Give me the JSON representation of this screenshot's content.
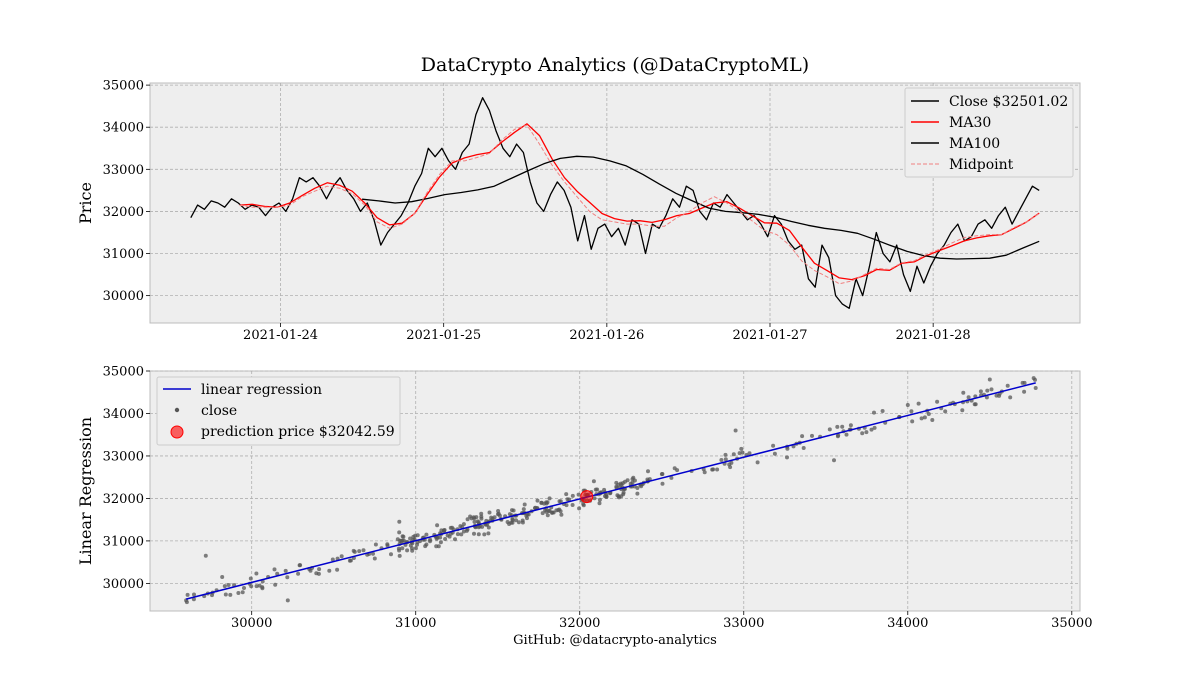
{
  "figure": {
    "title": "DataCrypto Analytics (@DataCryptoML)",
    "footer": "GitHub: @datacrypto-analytics"
  },
  "chart_data": [
    {
      "type": "line",
      "title": "DataCrypto Analytics (@DataCryptoML)",
      "xlabel": "",
      "ylabel": "Price",
      "x_ticks": [
        "2021-01-24",
        "2021-01-25",
        "2021-01-26",
        "2021-01-27",
        "2021-01-28"
      ],
      "x_range_days": [
        -0.8,
        4.9
      ],
      "x_tick_days": [
        0,
        1,
        2,
        3,
        4
      ],
      "ylim": [
        29350,
        35050
      ],
      "y_ticks": [
        30000,
        31000,
        32000,
        33000,
        34000,
        35000
      ],
      "grid": true,
      "legend_position": "top-right",
      "legend": [
        "Close $32501.02",
        "MA30",
        "MA100",
        "Midpoint"
      ],
      "series": [
        {
          "name": "Close $32501.02",
          "color": "#000000",
          "x_start_day": -0.55,
          "x_end_day": 4.65,
          "values": [
            31850,
            32150,
            32050,
            32250,
            32200,
            32100,
            32300,
            32200,
            32050,
            32150,
            32100,
            31900,
            32100,
            32200,
            32000,
            32300,
            32800,
            32700,
            32800,
            32600,
            32300,
            32600,
            32800,
            32500,
            32300,
            32000,
            32200,
            31800,
            31200,
            31500,
            31700,
            31900,
            32200,
            32600,
            32900,
            33500,
            33300,
            33500,
            33200,
            33000,
            33400,
            33600,
            34300,
            34700,
            34400,
            33900,
            33500,
            33300,
            33600,
            33400,
            32700,
            32200,
            32000,
            32400,
            32700,
            32500,
            32100,
            31300,
            31900,
            31100,
            31600,
            31700,
            31400,
            31600,
            31200,
            31800,
            31700,
            31000,
            31700,
            31600,
            31900,
            32300,
            32100,
            32600,
            32500,
            32000,
            31800,
            32200,
            32100,
            32400,
            32200,
            32000,
            31800,
            31900,
            31700,
            31400,
            31900,
            31700,
            31300,
            31100,
            31200,
            30400,
            30200,
            31200,
            30900,
            30000,
            29800,
            29700,
            30400,
            30000,
            30700,
            31500,
            31000,
            30800,
            31200,
            30500,
            30100,
            30700,
            30300,
            30700,
            31000,
            31200,
            31500,
            31700,
            31300,
            31400,
            31700,
            31800,
            31600,
            31900,
            32100,
            31700,
            32000,
            32300,
            32600,
            32500
          ]
        },
        {
          "name": "MA30",
          "color": "#ff0000",
          "x_start_day": -0.25,
          "x_end_day": 4.65,
          "values": [
            32150,
            32170,
            32120,
            32100,
            32200,
            32380,
            32550,
            32680,
            32620,
            32480,
            32200,
            31850,
            31680,
            31720,
            31950,
            32400,
            32820,
            33150,
            33270,
            33350,
            33400,
            33650,
            33880,
            34080,
            33800,
            33250,
            32800,
            32480,
            32220,
            31950,
            31830,
            31770,
            31780,
            31740,
            31800,
            31900,
            31950,
            32080,
            32200,
            32230,
            32080,
            31900,
            31730,
            31720,
            31550,
            31150,
            30770,
            30600,
            30420,
            30380,
            30470,
            30620,
            30600,
            30770,
            30800,
            30950,
            31070,
            31180,
            31300,
            31370,
            31420,
            31450,
            31600,
            31750,
            31960
          ]
        },
        {
          "name": "MA100",
          "color": "#000000",
          "x_start_day": 0.5,
          "x_end_day": 4.65,
          "values": [
            32290,
            32250,
            32200,
            32230,
            32310,
            32400,
            32450,
            32510,
            32600,
            32780,
            32960,
            33130,
            33260,
            33310,
            33290,
            33200,
            33080,
            32880,
            32650,
            32430,
            32250,
            32080,
            32000,
            31970,
            31930,
            31860,
            31760,
            31670,
            31600,
            31550,
            31480,
            31340,
            31190,
            31050,
            30950,
            30890,
            30870,
            30880,
            30890,
            30960,
            31130,
            31290
          ]
        },
        {
          "name": "Midpoint",
          "color": "#f08080",
          "dashed": true,
          "x_start_day": -0.25,
          "x_end_day": 4.65,
          "values": [
            32150,
            32100,
            32100,
            32100,
            32150,
            32350,
            32480,
            32600,
            32550,
            32420,
            32150,
            31750,
            31600,
            31700,
            31950,
            32450,
            32880,
            33200,
            33200,
            33280,
            33380,
            33700,
            33950,
            34050,
            33600,
            33100,
            32700,
            32350,
            32000,
            31800,
            31750,
            31700,
            31700,
            31650,
            31650,
            31850,
            32000,
            32200,
            32350,
            32200,
            32000,
            31780,
            31550,
            31450,
            31200,
            30820,
            30600,
            30450,
            30280,
            30350,
            30500,
            30650,
            30620,
            30780,
            30830,
            30980,
            31100,
            31250,
            31380,
            31420,
            31450,
            31450,
            31620,
            31750,
            31950
          ]
        }
      ]
    },
    {
      "type": "scatter",
      "xlabel": "",
      "ylabel": "Linear Regression",
      "xlim": [
        29380,
        35050
      ],
      "ylim": [
        29350,
        35000
      ],
      "x_ticks": [
        30000,
        31000,
        32000,
        33000,
        34000,
        35000
      ],
      "y_ticks": [
        30000,
        31000,
        32000,
        33000,
        34000,
        35000
      ],
      "grid": true,
      "legend_position": "top-left",
      "legend": [
        "linear regression",
        "close",
        "prediction price $32042.59"
      ],
      "regression_line": {
        "name": "linear regression",
        "color": "#0000cc",
        "x": [
          29600,
          34780
        ],
        "y": [
          29630,
          34720
        ]
      },
      "scatter_series": {
        "name": "close",
        "color": "#555555",
        "x_span": [
          29600,
          34780
        ],
        "count": 420,
        "noise_sd": 120,
        "outliers": [
          [
            29720,
            30650
          ],
          [
            29820,
            30150
          ],
          [
            30100,
            30150
          ],
          [
            30220,
            29600
          ],
          [
            29600,
            29600
          ],
          [
            30900,
            31450
          ],
          [
            32950,
            33600
          ],
          [
            33550,
            32900
          ],
          [
            34000,
            34200
          ],
          [
            34500,
            34800
          ],
          [
            34780,
            34600
          ]
        ]
      },
      "prediction": {
        "name": "prediction price $32042.59",
        "x": 32042.59,
        "y": 32042.59,
        "color": "#ff0000"
      }
    }
  ]
}
